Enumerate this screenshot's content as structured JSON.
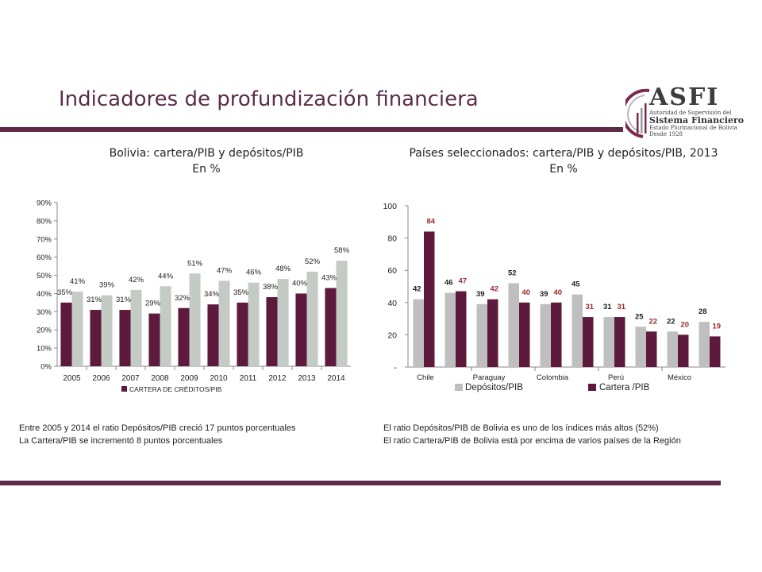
{
  "header": {
    "title": "Indicadores de profundización financiera"
  },
  "logo": {
    "name": "ASFI",
    "line1": "Autoridad de Supervisión del",
    "line2": "Sistema Financiero",
    "line3": "Estado Plurinacional de Bolivia",
    "line4": "Desde 1928",
    "colors": {
      "maroon": "#7a2a4f",
      "gray": "#9a9a9a"
    }
  },
  "chart_data": [
    {
      "type": "bar",
      "title": "Bolivia: cartera/PIB y depósitos/PIB",
      "subtitle": "En %",
      "categories": [
        "2005",
        "2006",
        "2007",
        "2008",
        "2009",
        "2010",
        "2011",
        "2012",
        "2013",
        "2014"
      ],
      "series": [
        {
          "name": "CARTERA DE CRÉDITOS/PIB",
          "values": [
            35,
            31,
            31,
            29,
            32,
            34,
            35,
            38,
            40,
            43
          ],
          "labels": [
            "35%",
            "31%",
            "31%",
            "29%",
            "32%",
            "34%",
            "35%",
            "38%",
            "40%",
            "43%"
          ],
          "color": "#5e1a3c"
        },
        {
          "name": "",
          "values": [
            41,
            39,
            42,
            44,
            51,
            47,
            46,
            48,
            52,
            58
          ],
          "labels": [
            "41%",
            "39%",
            "42%",
            "44%",
            "51%",
            "47%",
            "46%",
            "48%",
            "52%",
            "58%"
          ],
          "color": "#c3cbc4"
        }
      ],
      "yticks": [
        "0%",
        "10%",
        "20%",
        "30%",
        "40%",
        "50%",
        "60%",
        "70%",
        "80%",
        "90%"
      ],
      "ylim": [
        0,
        90
      ],
      "legend": {
        "label": "CARTERA DE CRÉDITOS/PIB",
        "position": "bottom"
      },
      "grid": false
    },
    {
      "type": "bar",
      "title": "Países seleccionados: cartera/PIB y depósitos/PIB, 2013",
      "subtitle": "En %",
      "categories": [
        "Chile",
        "",
        "Paraguay",
        "",
        "Colombia",
        "",
        "Perú",
        "",
        "México",
        ""
      ],
      "series": [
        {
          "name": "Depósitos/PIB",
          "values": [
            42,
            46,
            39,
            52,
            39,
            45,
            31,
            25,
            22,
            28
          ],
          "labels": [
            "42",
            "46",
            "39",
            "52",
            "39",
            "45",
            "31",
            "25",
            "22",
            "28"
          ],
          "color": "#bfbfbf",
          "label_color": "#222222"
        },
        {
          "name": "Cartera /PIB",
          "values": [
            84,
            47,
            42,
            40,
            40,
            31,
            31,
            22,
            20,
            19
          ],
          "labels": [
            "84",
            "47",
            "42",
            "40",
            "40",
            "31",
            "31",
            "22",
            "20",
            "19"
          ],
          "color": "#5e1a3c",
          "label_color": "#9b2b30"
        }
      ],
      "yticks": [
        "-",
        "20",
        "40",
        "60",
        "80",
        "100"
      ],
      "ylim": [
        0,
        100
      ],
      "legend": {
        "position": "bottom"
      },
      "grid": false
    }
  ],
  "notes": {
    "left_line1": "Entre 2005 y 2014 el ratio Depósitos/PIB creció 17 puntos porcentuales",
    "left_line2": "La Cartera/PIB se incrementó 8 puntos porcentuales",
    "right_line1": "El ratio Depósitos/PIB de Bolivia es uno de los índices más altos (52%)",
    "right_line2": "El ratio Cartera/PIB de Bolivia está por encima de varios países de la Región"
  }
}
